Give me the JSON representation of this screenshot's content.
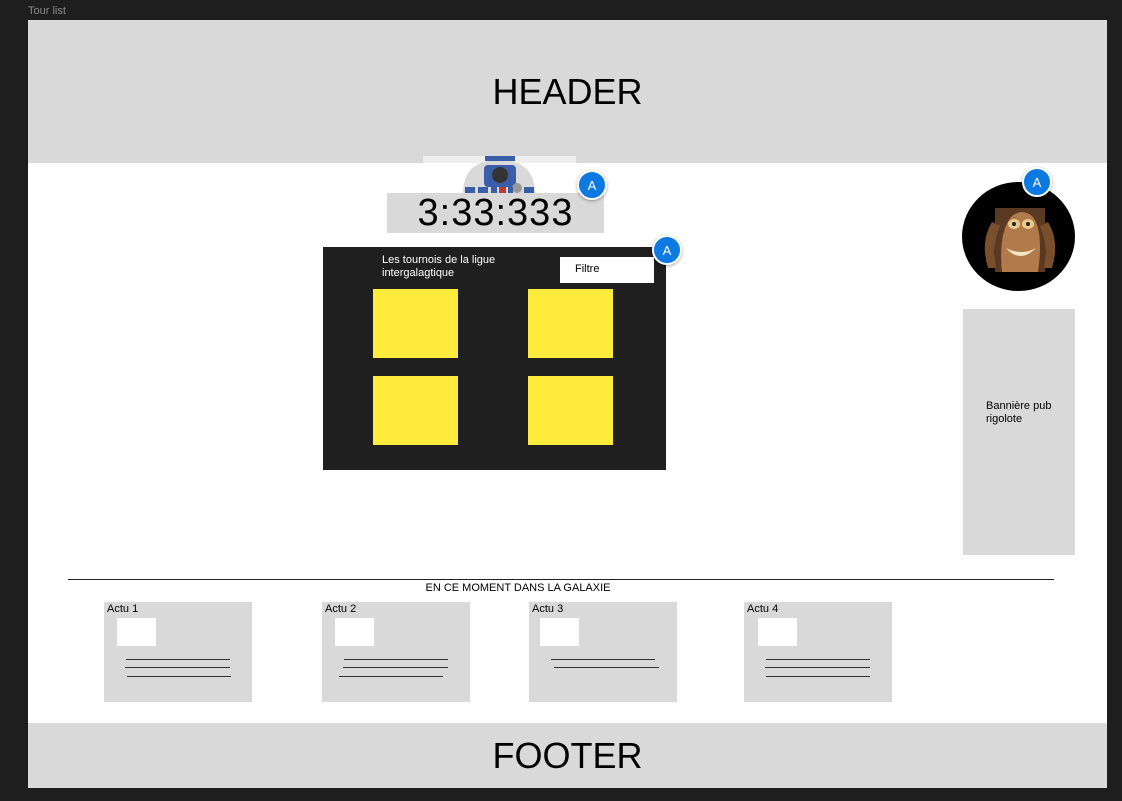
{
  "frame": {
    "label": "Tour list"
  },
  "header": {
    "label": "HEADER"
  },
  "footer": {
    "label": "FOOTER"
  },
  "timer": {
    "value": "3:33:333"
  },
  "annotations": {
    "badge": "A"
  },
  "tournaments": {
    "title": "Les tournois de la ligue intergalagtique",
    "filter_label": "Filtre",
    "tile_color": "#ffeb3b"
  },
  "ad": {
    "text": "Bannière pub rigolote"
  },
  "news": {
    "heading": "EN CE MOMENT DANS LA GALAXIE",
    "items": [
      {
        "label": "Actu 1"
      },
      {
        "label": "Actu 2"
      },
      {
        "label": "Actu 3"
      },
      {
        "label": "Actu 4"
      }
    ]
  },
  "colors": {
    "canvas": "#1e1e1e",
    "placeholder_gray": "#d9d9d9",
    "annotation_blue": "#0c7ae0",
    "panel_dark": "#1f1f1f"
  }
}
